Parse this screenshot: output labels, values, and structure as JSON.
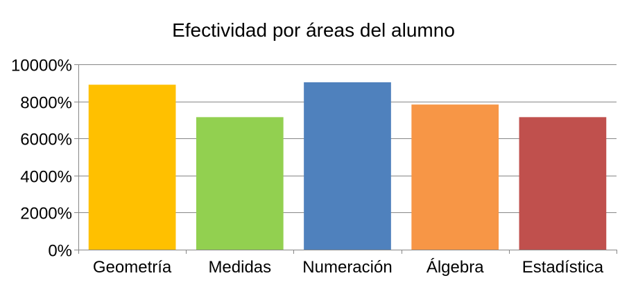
{
  "chart_data": {
    "type": "bar",
    "title": "Efectividad por áreas del alumno",
    "xlabel": "",
    "ylabel": "",
    "categories": [
      "Geometría",
      "Medidas",
      "Numeración",
      "Álgebra",
      "Estadística"
    ],
    "values": [
      8900,
      7150,
      9030,
      7830,
      7150
    ],
    "colors": [
      "#FFC000",
      "#92D050",
      "#4F81BD",
      "#F79646",
      "#C0504D"
    ],
    "ylim": [
      0,
      10000
    ],
    "yticks": [
      0,
      2000,
      4000,
      6000,
      8000,
      10000
    ],
    "ytick_labels": [
      "0%",
      "2000%",
      "4000%",
      "6000%",
      "8000%",
      "10000%"
    ],
    "grid": true,
    "legend": "none"
  }
}
